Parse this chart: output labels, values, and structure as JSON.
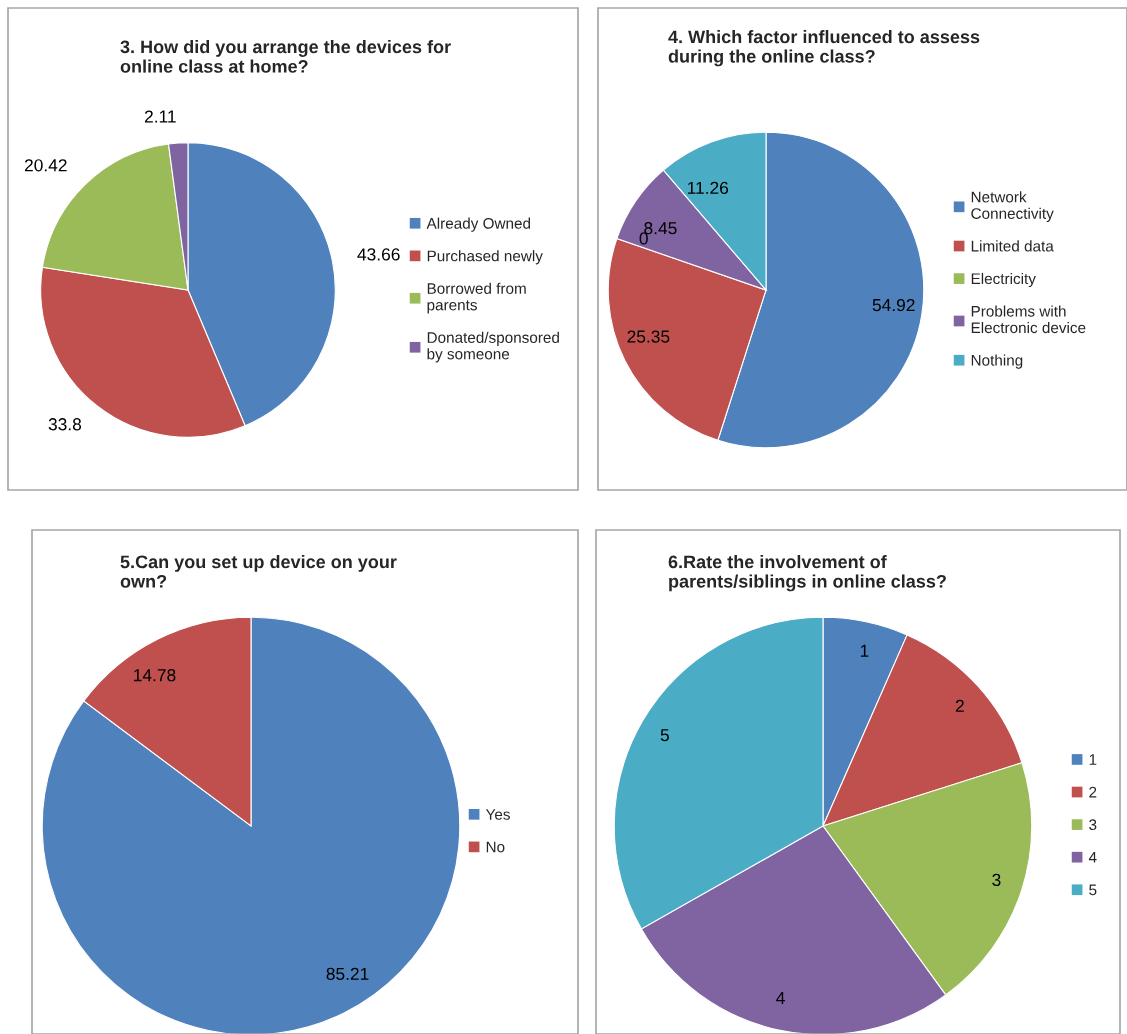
{
  "chart_data": [
    {
      "type": "pie",
      "title": "3. How did you arrange the devices for\nonline class at home?",
      "categories": [
        "Already Owned",
        "Purchased newly",
        "Borrowed from\nparents",
        "Donated/sponsored\nby someone"
      ],
      "values": [
        43.66,
        33.8,
        20.42,
        2.11
      ],
      "colors": [
        "#4f81bd",
        "#c0504d",
        "#9bbb59",
        "#8064a2"
      ],
      "data_labels": true,
      "legend": "right"
    },
    {
      "type": "pie",
      "title": "4. Which factor influenced to assess\nduring the online class?",
      "categories": [
        "Network\nConnectivity",
        "Limited data",
        "Electricity",
        "Problems with\nElectronic device",
        "Nothing"
      ],
      "values": [
        54.92,
        25.35,
        0,
        8.45,
        11.26
      ],
      "value_labels": [
        "54.92",
        "25.35",
        "0",
        "8.45",
        "11.26"
      ],
      "colors": [
        "#4f81bd",
        "#c0504d",
        "#9bbb59",
        "#8064a2",
        "#4bacc6"
      ],
      "legend": "right"
    },
    {
      "type": "pie",
      "title": "5.Can you set up device on your\nown?",
      "categories": [
        "Yes",
        "No"
      ],
      "values": [
        85.21,
        14.78
      ],
      "colors": [
        "#4f81bd",
        "#c0504d"
      ],
      "data_labels": true,
      "legend": "right"
    },
    {
      "type": "pie",
      "title": "6.Rate the involvement of\nparents/siblings in online class?",
      "categories": [
        "1",
        "2",
        "3",
        "4",
        "5"
      ],
      "values": [
        6.6,
        13.5,
        19.9,
        26.8,
        33.2
      ],
      "colors": [
        "#4f81bd",
        "#c0504d",
        "#9bbb59",
        "#8064a2",
        "#4bacc6"
      ],
      "legend": "right"
    }
  ]
}
